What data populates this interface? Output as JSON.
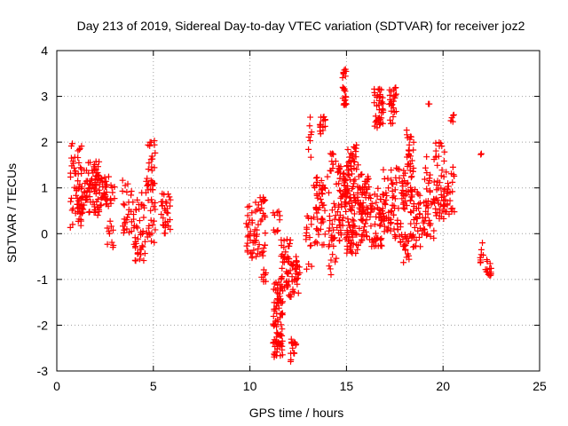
{
  "chart_data": {
    "type": "scatter",
    "title": "Day 213 of 2019, Sidereal Day-to-day VTEC variation (SDTVAR) for receiver joz2",
    "xlabel": "GPS time / hours",
    "ylabel": "SDTVAR / TECUs",
    "xlim": [
      0,
      25
    ],
    "ylim": [
      -3,
      4
    ],
    "xticks": [
      0,
      5,
      10,
      15,
      20,
      25
    ],
    "yticks": [
      -3,
      -2,
      -1,
      0,
      1,
      2,
      3,
      4
    ],
    "grid": true,
    "marker": "plus",
    "color": "#ff0000",
    "clusters": [
      {
        "t0": 0.7,
        "t1": 1.3,
        "lo": 0.1,
        "hi": 2.0,
        "n": 60
      },
      {
        "t0": 1.3,
        "t1": 2.2,
        "lo": 0.4,
        "hi": 1.6,
        "n": 80
      },
      {
        "t0": 2.2,
        "t1": 3.0,
        "lo": 0.6,
        "hi": 1.3,
        "n": 40
      },
      {
        "t0": 2.6,
        "t1": 3.0,
        "lo": -0.3,
        "hi": 0.3,
        "n": 10
      },
      {
        "t0": 3.4,
        "t1": 4.0,
        "lo": 0.0,
        "hi": 1.2,
        "n": 30
      },
      {
        "t0": 4.0,
        "t1": 4.6,
        "lo": -0.6,
        "hi": 0.9,
        "n": 40
      },
      {
        "t0": 4.6,
        "t1": 5.1,
        "lo": -0.2,
        "hi": 2.1,
        "n": 50
      },
      {
        "t0": 5.4,
        "t1": 5.9,
        "lo": 0.0,
        "hi": 0.9,
        "n": 30
      },
      {
        "t0": 9.8,
        "t1": 10.2,
        "lo": -0.6,
        "hi": 0.6,
        "n": 25
      },
      {
        "t0": 10.2,
        "t1": 10.8,
        "lo": -0.5,
        "hi": 0.8,
        "n": 40
      },
      {
        "t0": 10.6,
        "t1": 11.0,
        "lo": -1.1,
        "hi": -0.7,
        "n": 8
      },
      {
        "t0": 11.2,
        "t1": 11.7,
        "lo": -2.7,
        "hi": -1.0,
        "n": 80
      },
      {
        "t0": 11.2,
        "t1": 11.6,
        "lo": 0.0,
        "hi": 0.5,
        "n": 10
      },
      {
        "t0": 11.6,
        "t1": 12.1,
        "lo": -1.2,
        "hi": 0.0,
        "n": 40
      },
      {
        "t0": 12.0,
        "t1": 12.6,
        "lo": -1.4,
        "hi": -0.5,
        "n": 35
      },
      {
        "t0": 12.1,
        "t1": 12.4,
        "lo": -2.8,
        "hi": -2.3,
        "n": 15
      },
      {
        "t0": 12.9,
        "t1": 13.3,
        "lo": -0.8,
        "hi": 0.4,
        "n": 15
      },
      {
        "t0": 13.3,
        "t1": 13.9,
        "lo": -0.3,
        "hi": 1.3,
        "n": 50
      },
      {
        "t0": 13.0,
        "t1": 13.2,
        "lo": 1.6,
        "hi": 2.6,
        "n": 8
      },
      {
        "t0": 13.6,
        "t1": 13.9,
        "lo": 2.1,
        "hi": 2.6,
        "n": 15
      },
      {
        "t0": 14.0,
        "t1": 14.5,
        "lo": -0.9,
        "hi": 1.9,
        "n": 40
      },
      {
        "t0": 14.5,
        "t1": 15.0,
        "lo": -0.2,
        "hi": 1.5,
        "n": 60
      },
      {
        "t0": 14.8,
        "t1": 15.0,
        "lo": 2.8,
        "hi": 3.6,
        "n": 25
      },
      {
        "t0": 15.0,
        "t1": 15.7,
        "lo": -0.5,
        "hi": 2.0,
        "n": 110
      },
      {
        "t0": 15.7,
        "t1": 16.3,
        "lo": -0.2,
        "hi": 1.3,
        "n": 60
      },
      {
        "t0": 16.3,
        "t1": 17.0,
        "lo": -0.3,
        "hi": 1.0,
        "n": 50
      },
      {
        "t0": 16.4,
        "t1": 16.9,
        "lo": 2.3,
        "hi": 3.3,
        "n": 40
      },
      {
        "t0": 16.9,
        "t1": 17.5,
        "lo": 0.0,
        "hi": 1.4,
        "n": 40
      },
      {
        "t0": 17.2,
        "t1": 17.6,
        "lo": 2.4,
        "hi": 3.2,
        "n": 25
      },
      {
        "t0": 17.5,
        "t1": 18.0,
        "lo": -0.2,
        "hi": 1.5,
        "n": 35
      },
      {
        "t0": 17.8,
        "t1": 18.3,
        "lo": -0.8,
        "hi": 0.0,
        "n": 20
      },
      {
        "t0": 18.0,
        "t1": 18.5,
        "lo": 0.5,
        "hi": 2.3,
        "n": 45
      },
      {
        "t0": 18.3,
        "t1": 19.0,
        "lo": -0.3,
        "hi": 1.0,
        "n": 40
      },
      {
        "t0": 19.0,
        "t1": 19.6,
        "lo": -0.1,
        "hi": 1.7,
        "n": 40
      },
      {
        "t0": 19.6,
        "t1": 20.1,
        "lo": 0.3,
        "hi": 2.0,
        "n": 45
      },
      {
        "t0": 20.1,
        "t1": 20.6,
        "lo": 0.4,
        "hi": 1.5,
        "n": 25
      },
      {
        "t0": 20.4,
        "t1": 20.6,
        "lo": 2.4,
        "hi": 2.6,
        "n": 5
      },
      {
        "t0": 19.2,
        "t1": 19.3,
        "lo": 2.8,
        "hi": 2.85,
        "n": 2
      },
      {
        "t0": 21.9,
        "t1": 22.1,
        "lo": 1.7,
        "hi": 1.75,
        "n": 2
      },
      {
        "t0": 21.9,
        "t1": 22.1,
        "lo": -1.0,
        "hi": -0.2,
        "n": 8
      },
      {
        "t0": 22.2,
        "t1": 22.5,
        "lo": -0.95,
        "hi": -0.55,
        "n": 15
      }
    ]
  }
}
